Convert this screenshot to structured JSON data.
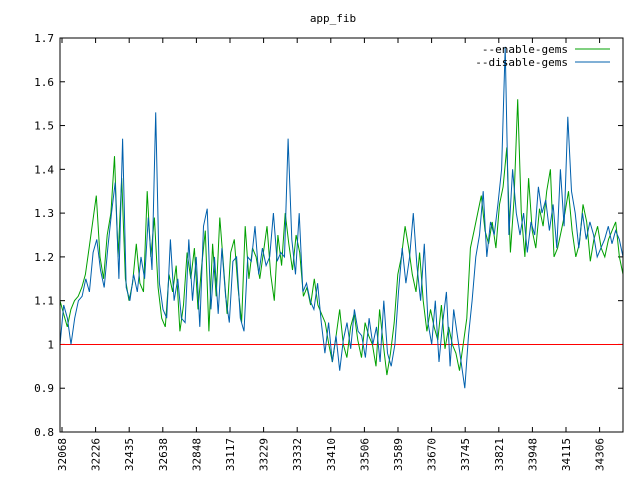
{
  "chart_data": {
    "type": "line",
    "title": "app_fib",
    "xlabel": "",
    "ylabel": "",
    "ylim": [
      0.8,
      1.7
    ],
    "yticks": [
      "0.8",
      "0.9",
      "1",
      "1.1",
      "1.2",
      "1.3",
      "1.4",
      "1.5",
      "1.6",
      "1.7"
    ],
    "xticks": [
      "32068",
      "32226",
      "32435",
      "32638",
      "32848",
      "33117",
      "33229",
      "33332",
      "33410",
      "33506",
      "33589",
      "33670",
      "33745",
      "33821",
      "33948",
      "34115",
      "34306"
    ],
    "legend_position": "top-right",
    "baseline": {
      "value": 1.0,
      "color": "#ff0000"
    },
    "series": [
      {
        "name": "--enable-gems",
        "color": "#00a000",
        "values": [
          1.1,
          1.07,
          1.04,
          1.08,
          1.1,
          1.11,
          1.13,
          1.16,
          1.22,
          1.28,
          1.34,
          1.2,
          1.15,
          1.25,
          1.3,
          1.43,
          1.2,
          1.38,
          1.15,
          1.1,
          1.14,
          1.23,
          1.14,
          1.12,
          1.35,
          1.2,
          1.29,
          1.13,
          1.06,
          1.04,
          1.16,
          1.12,
          1.18,
          1.03,
          1.09,
          1.21,
          1.15,
          1.22,
          1.08,
          1.18,
          1.26,
          1.03,
          1.23,
          1.11,
          1.29,
          1.18,
          1.07,
          1.21,
          1.24,
          1.13,
          1.05,
          1.27,
          1.15,
          1.22,
          1.2,
          1.15,
          1.21,
          1.27,
          1.16,
          1.1,
          1.25,
          1.18,
          1.3,
          1.23,
          1.17,
          1.25,
          1.21,
          1.11,
          1.13,
          1.09,
          1.15,
          1.09,
          1.07,
          1.05,
          1.0,
          0.96,
          1.02,
          1.08,
          1.0,
          0.97,
          1.04,
          1.07,
          1.01,
          0.97,
          1.05,
          1.02,
          1.0,
          0.95,
          1.08,
          1.0,
          0.93,
          0.98,
          1.05,
          1.16,
          1.2,
          1.27,
          1.22,
          1.16,
          1.12,
          1.21,
          1.1,
          1.03,
          1.08,
          1.04,
          1.01,
          1.09,
          0.99,
          1.04,
          1.0,
          0.98,
          0.94,
          1.0,
          1.06,
          1.22,
          1.26,
          1.3,
          1.34,
          1.26,
          1.23,
          1.28,
          1.22,
          1.32,
          1.36,
          1.45,
          1.21,
          1.33,
          1.56,
          1.3,
          1.2,
          1.38,
          1.26,
          1.22,
          1.31,
          1.27,
          1.35,
          1.4,
          1.2,
          1.22,
          1.26,
          1.3,
          1.35,
          1.26,
          1.2,
          1.23,
          1.32,
          1.28,
          1.19,
          1.24,
          1.27,
          1.22,
          1.2,
          1.24,
          1.26,
          1.28,
          1.2,
          1.16
        ]
      },
      {
        "name": "--disable-gems",
        "color": "#0060ad",
        "values": [
          1.0,
          1.09,
          1.06,
          1.0,
          1.06,
          1.1,
          1.11,
          1.15,
          1.12,
          1.21,
          1.24,
          1.17,
          1.13,
          1.22,
          1.3,
          1.37,
          1.15,
          1.47,
          1.13,
          1.1,
          1.16,
          1.12,
          1.2,
          1.15,
          1.29,
          1.17,
          1.53,
          1.14,
          1.08,
          1.06,
          1.24,
          1.1,
          1.15,
          1.06,
          1.05,
          1.24,
          1.1,
          1.2,
          1.04,
          1.27,
          1.31,
          1.08,
          1.2,
          1.07,
          1.22,
          1.11,
          1.05,
          1.19,
          1.2,
          1.06,
          1.03,
          1.2,
          1.19,
          1.27,
          1.16,
          1.22,
          1.18,
          1.2,
          1.3,
          1.19,
          1.21,
          1.2,
          1.47,
          1.24,
          1.16,
          1.3,
          1.12,
          1.14,
          1.1,
          1.08,
          1.14,
          1.05,
          0.98,
          1.05,
          0.96,
          1.02,
          0.94,
          1.01,
          1.05,
          0.99,
          1.08,
          1.03,
          1.02,
          0.97,
          1.06,
          1.0,
          1.04,
          0.96,
          1.1,
          0.98,
          0.95,
          1.0,
          1.12,
          1.22,
          1.14,
          1.2,
          1.3,
          1.18,
          1.1,
          1.23,
          1.05,
          1.0,
          1.1,
          0.96,
          1.05,
          1.12,
          0.95,
          1.08,
          1.02,
          0.96,
          0.9,
          1.02,
          1.1,
          1.2,
          1.25,
          1.35,
          1.2,
          1.28,
          1.25,
          1.32,
          1.4,
          1.68,
          1.25,
          1.4,
          1.3,
          1.25,
          1.3,
          1.21,
          1.28,
          1.25,
          1.36,
          1.3,
          1.33,
          1.26,
          1.32,
          1.22,
          1.4,
          1.27,
          1.52,
          1.35,
          1.3,
          1.22,
          1.3,
          1.24,
          1.28,
          1.25,
          1.2,
          1.22,
          1.24,
          1.27,
          1.23,
          1.26,
          1.24,
          1.2
        ]
      }
    ]
  }
}
